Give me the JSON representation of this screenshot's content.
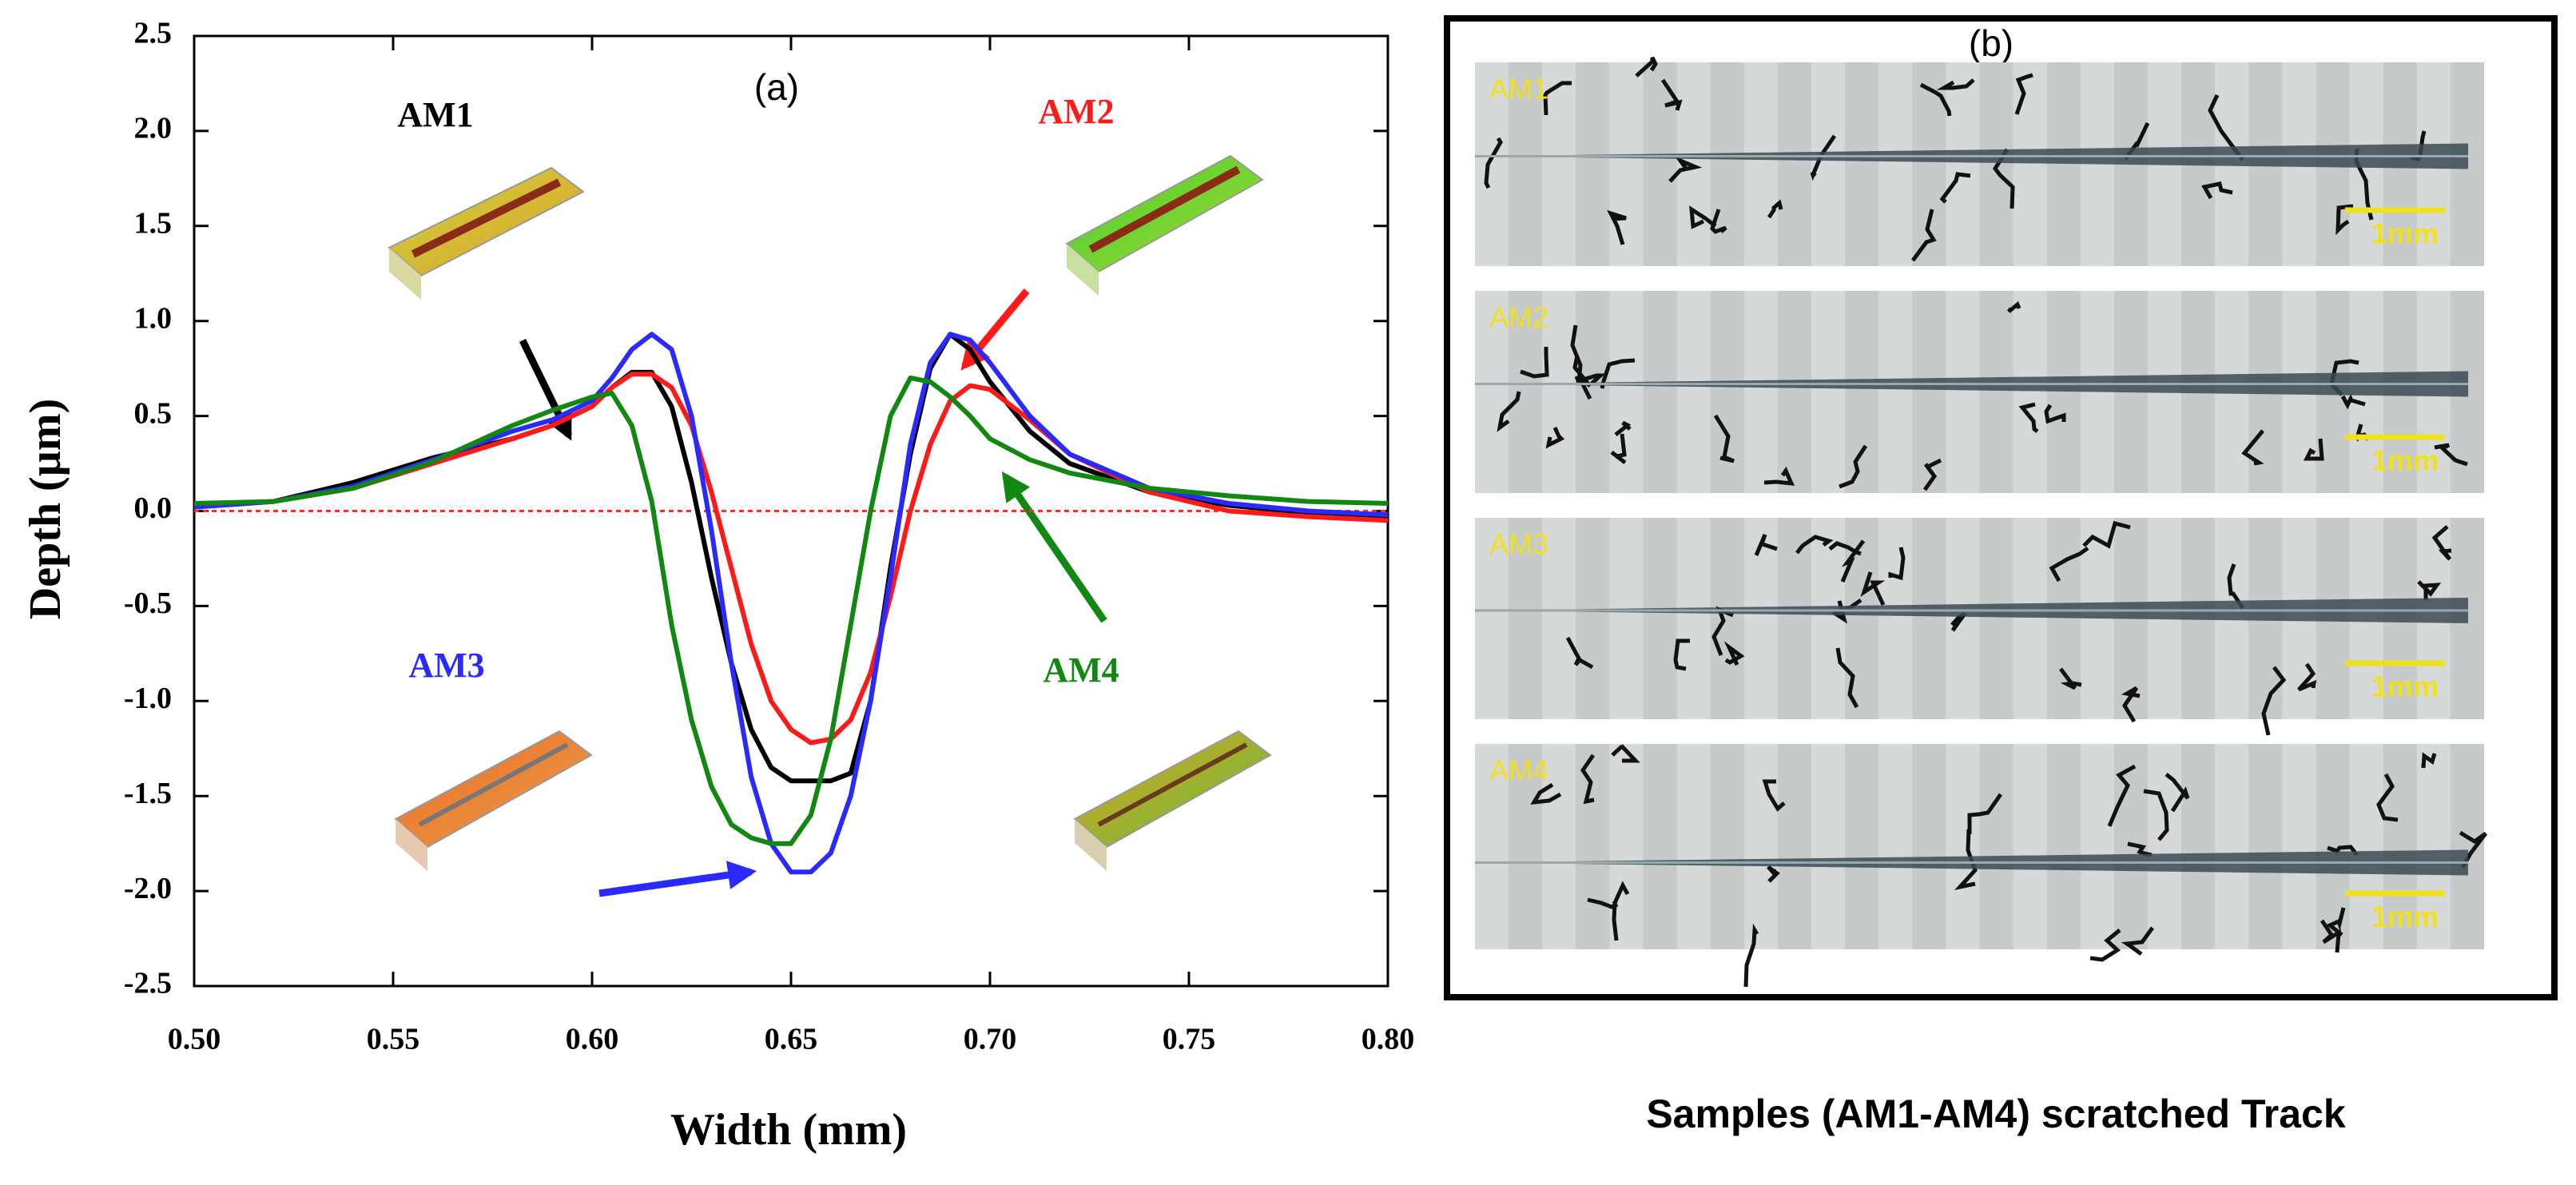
{
  "chart_data": {
    "type": "line",
    "panel_label": "(a)",
    "xlabel": "Width (mm)",
    "ylabel": "Depth (µm)",
    "x": [
      0.5,
      0.52,
      0.54,
      0.56,
      0.58,
      0.59,
      0.6,
      0.605,
      0.61,
      0.615,
      0.62,
      0.625,
      0.63,
      0.635,
      0.64,
      0.645,
      0.65,
      0.655,
      0.66,
      0.665,
      0.67,
      0.675,
      0.68,
      0.685,
      0.69,
      0.695,
      0.7,
      0.71,
      0.72,
      0.74,
      0.76,
      0.78,
      0.8
    ],
    "series": [
      {
        "name": "AM1",
        "color": "#000000",
        "values": [
          0.03,
          0.05,
          0.15,
          0.28,
          0.38,
          0.45,
          0.55,
          0.65,
          0.73,
          0.73,
          0.55,
          0.15,
          -0.35,
          -0.8,
          -1.15,
          -1.35,
          -1.42,
          -1.42,
          -1.42,
          -1.38,
          -1.0,
          -0.3,
          0.3,
          0.75,
          0.93,
          0.85,
          0.68,
          0.42,
          0.25,
          0.1,
          0.03,
          -0.01,
          -0.03
        ]
      },
      {
        "name": "AM2",
        "color": "#ff1a1a",
        "values": [
          0.02,
          0.05,
          0.12,
          0.25,
          0.38,
          0.45,
          0.55,
          0.65,
          0.72,
          0.72,
          0.65,
          0.45,
          0.1,
          -0.3,
          -0.7,
          -1.0,
          -1.15,
          -1.22,
          -1.2,
          -1.1,
          -0.85,
          -0.45,
          0.0,
          0.35,
          0.58,
          0.66,
          0.64,
          0.48,
          0.3,
          0.1,
          0.0,
          -0.03,
          -0.05
        ]
      },
      {
        "name": "AM3",
        "color": "#2a2aff",
        "values": [
          0.02,
          0.05,
          0.13,
          0.27,
          0.42,
          0.48,
          0.58,
          0.7,
          0.85,
          0.93,
          0.85,
          0.5,
          -0.1,
          -0.8,
          -1.4,
          -1.75,
          -1.9,
          -1.9,
          -1.8,
          -1.5,
          -1.0,
          -0.35,
          0.35,
          0.78,
          0.93,
          0.9,
          0.78,
          0.5,
          0.3,
          0.12,
          0.04,
          0.0,
          -0.02
        ]
      },
      {
        "name": "AM4",
        "color": "#118811",
        "values": [
          0.04,
          0.05,
          0.12,
          0.26,
          0.45,
          0.53,
          0.6,
          0.62,
          0.45,
          0.05,
          -0.6,
          -1.1,
          -1.45,
          -1.65,
          -1.72,
          -1.75,
          -1.75,
          -1.6,
          -1.2,
          -0.6,
          0.0,
          0.5,
          0.7,
          0.68,
          0.6,
          0.5,
          0.38,
          0.27,
          0.2,
          0.12,
          0.08,
          0.05,
          0.04
        ]
      }
    ],
    "reference_line": {
      "value": 0,
      "color": "#ff2a2a"
    },
    "xlim": [
      0.5,
      0.8
    ],
    "xticks": [
      {
        "value": 0.5,
        "label": "0.50"
      },
      0.55,
      {
        "value": 0.6,
        "label": "0.60"
      },
      0.65,
      {
        "value": 0.7,
        "label": "0.70"
      },
      0.75,
      {
        "value": 0.8,
        "label": "0.80"
      }
    ],
    "ylim": [
      -2.5,
      2.5
    ],
    "yticks": [
      -2.5,
      {
        "value": -2,
        "label": "-2.0"
      },
      -1.5,
      {
        "value": -1,
        "label": "-1.0"
      },
      -0.5,
      {
        "value": 0,
        "label": "0.0"
      },
      0.5,
      {
        "value": 1,
        "label": "1.0"
      },
      1.5,
      {
        "value": 2,
        "label": "2.0"
      },
      2.5
    ],
    "grid": false
  },
  "panel_b": {
    "label": "(b)",
    "strips": [
      {
        "label": "AM1",
        "scale": "1mm"
      },
      {
        "label": "AM2",
        "scale": "1mm"
      },
      {
        "label": "AM3",
        "scale": "1mm"
      },
      {
        "label": "AM4",
        "scale": "1mm"
      }
    ],
    "caption": "Samples (AM1-AM4)  scratched Track"
  }
}
